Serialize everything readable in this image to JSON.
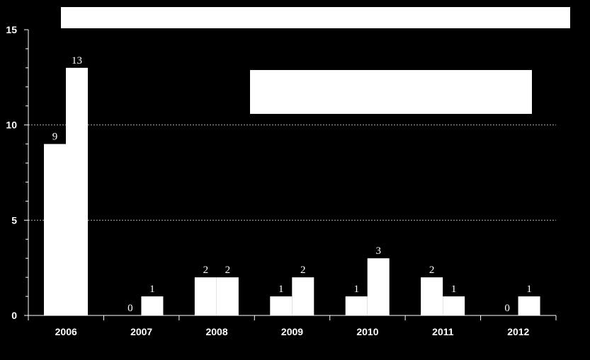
{
  "chart_data": {
    "type": "bar",
    "categories": [
      "2006",
      "2007",
      "2008",
      "2009",
      "2010",
      "2011",
      "2012"
    ],
    "series": [
      {
        "values": [
          9,
          0,
          2,
          1,
          1,
          2,
          0
        ]
      },
      {
        "values": [
          13,
          1,
          2,
          2,
          3,
          1,
          1
        ]
      }
    ],
    "ylim": [
      0,
      15
    ],
    "yticks": [
      0,
      5,
      10,
      15
    ],
    "grid": "dotted horizontal at 5 and 10",
    "title": "",
    "xlabel": "",
    "ylabel": "",
    "colors": {
      "background": "#000000",
      "bars": "#ffffff",
      "axis": "#ffffff"
    }
  }
}
